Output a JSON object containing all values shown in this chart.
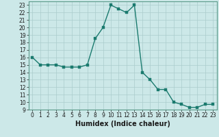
{
  "x": [
    0,
    1,
    2,
    3,
    4,
    5,
    6,
    7,
    8,
    9,
    10,
    11,
    12,
    13,
    14,
    15,
    16,
    17,
    18,
    19,
    20,
    21,
    22,
    23
  ],
  "y": [
    16,
    15,
    15,
    15,
    14.7,
    14.7,
    14.7,
    15,
    18.5,
    20,
    23,
    22.5,
    22,
    23,
    14,
    13,
    11.7,
    11.7,
    10,
    9.7,
    9.3,
    9.3,
    9.7,
    9.7
  ],
  "line_color": "#1a7a6e",
  "marker_color": "#1a7a6e",
  "bg_color": "#cce8e8",
  "grid_color": "#aacccc",
  "xlabel": "Humidex (Indice chaleur)",
  "xlim": [
    -0.5,
    23.5
  ],
  "ylim": [
    9,
    23.5
  ],
  "yticks": [
    9,
    10,
    11,
    12,
    13,
    14,
    15,
    16,
    17,
    18,
    19,
    20,
    21,
    22,
    23
  ],
  "xticks": [
    0,
    1,
    2,
    3,
    4,
    5,
    6,
    7,
    8,
    9,
    10,
    11,
    12,
    13,
    14,
    15,
    16,
    17,
    18,
    19,
    20,
    21,
    22,
    23
  ],
  "tick_fontsize": 5.5,
  "xlabel_fontsize": 7.0,
  "line_width": 1.0,
  "marker_size": 2.5
}
